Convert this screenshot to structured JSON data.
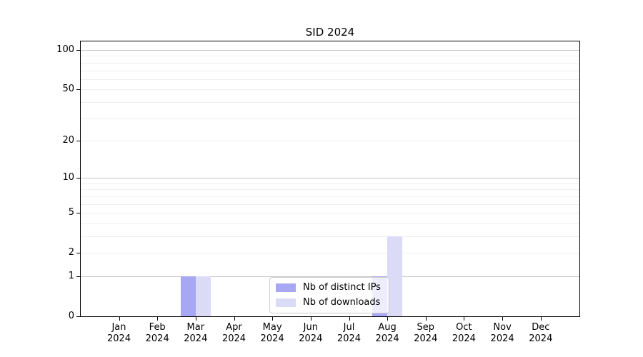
{
  "chart_data": {
    "type": "bar",
    "title": "SID 2024",
    "categories": [
      "Jan 2024",
      "Feb 2024",
      "Mar 2024",
      "Apr 2024",
      "May 2024",
      "Jun 2024",
      "Jul 2024",
      "Aug 2024",
      "Sep 2024",
      "Oct 2024",
      "Nov 2024",
      "Dec 2024"
    ],
    "series": [
      {
        "name": "Nb of distinct IPs",
        "color": "#a7a7f3",
        "values": [
          0,
          0,
          1,
          0,
          0,
          0,
          0,
          1,
          0,
          0,
          0,
          0
        ]
      },
      {
        "name": "Nb of downloads",
        "color": "#dbdbf8",
        "values": [
          0,
          0,
          1,
          0,
          0,
          0,
          0,
          3,
          0,
          0,
          0,
          0
        ]
      }
    ],
    "xlabel": "",
    "ylabel": "",
    "yscale": "log1p",
    "ylim": [
      0,
      117
    ],
    "y_tick_values": [
      0,
      1,
      2,
      5,
      10,
      20,
      50,
      100
    ],
    "y_tick_labels": [
      "0",
      "1",
      "2",
      "5",
      "10",
      "20",
      "50",
      "100"
    ],
    "y_major_gridlines": [
      1,
      10,
      100
    ],
    "y_minor_gridlines": [
      2,
      3,
      4,
      5,
      6,
      7,
      8,
      9,
      20,
      30,
      40,
      50,
      60,
      70,
      80,
      90
    ],
    "grid": true,
    "legend_position": "lower center",
    "colors": {
      "axis": "#000000",
      "text": "#000000",
      "grid_major": "#c6c6c6",
      "grid_minor": "#efefef",
      "legend_border": "#cccccc",
      "background": "#ffffff"
    }
  }
}
